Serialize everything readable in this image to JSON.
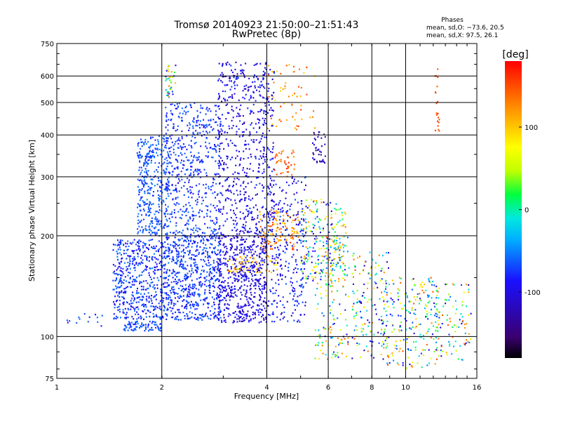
{
  "header": {
    "title": "Tromsø 20140923 21:50:00–21:51:43",
    "subtitle": "RwPretec (8p)"
  },
  "phases": {
    "heading": "Phases",
    "line_o": "mean, sd,O: −73.6, 20.5",
    "line_x": "mean, sd,X:  97.5, 26.1"
  },
  "chart_data": {
    "type": "scatter",
    "title": "Tromsø 20140923 21:50:00–21:51:43",
    "subtitle": "RwPretec (8p)",
    "xlabel": "Frequency [MHz]",
    "ylabel": "Stationary phase Virtual Height [km]",
    "x_scale": "log",
    "y_scale": "log",
    "xlim": [
      1,
      16
    ],
    "ylim": [
      75,
      750
    ],
    "x_ticks": [
      1,
      2,
      4,
      6,
      8,
      10,
      16
    ],
    "x_tick_labels": [
      "1",
      "2",
      "4",
      "6",
      "8",
      "10",
      "16"
    ],
    "x_gridlines": [
      2,
      4,
      6,
      8,
      10
    ],
    "y_ticks": [
      75,
      100,
      200,
      300,
      400,
      500,
      600,
      750
    ],
    "y_tick_labels": [
      "75",
      "100",
      "200",
      "300",
      "400",
      "500",
      "600",
      "750"
    ],
    "y_gridlines": [
      100,
      200,
      300,
      400,
      500,
      600
    ],
    "grid": true,
    "colorbar": {
      "label": "[deg]",
      "range": [
        -180,
        180
      ],
      "ticks": [
        -100,
        0,
        100
      ],
      "tick_labels": [
        "-100",
        "0",
        "100"
      ],
      "colors": [
        "#000000",
        "#3a0070",
        "#1a10ff",
        "#00b0ff",
        "#00e8e0",
        "#00ff40",
        "#c0ff00",
        "#ffff00",
        "#ff9a00",
        "#ff0000"
      ]
    },
    "series": [
      {
        "clusters": [
          {
            "f": [
              1.55,
              2.0
            ],
            "h": [
              104,
              111
            ],
            "phase": [
              -85,
              -55
            ],
            "n": 80
          },
          {
            "f": [
              1.05,
              1.35
            ],
            "h": [
              106,
              118
            ],
            "phase": [
              -90,
              -50
            ],
            "n": 14
          },
          {
            "f": [
              1.45,
              2.05
            ],
            "h": [
              112,
              195
            ],
            "phase": [
              -100,
              -50
            ],
            "n": 520
          },
          {
            "f": [
              1.7,
              2.1
            ],
            "h": [
              200,
              400
            ],
            "phase": [
              -80,
              -50
            ],
            "n": 360
          },
          {
            "f": [
              1.7,
              1.85
            ],
            "h": [
              340,
              350
            ],
            "phase": [
              -75,
              -55
            ],
            "n": 18
          },
          {
            "f": [
              2.05,
              2.95
            ],
            "h": [
              112,
              200
            ],
            "phase": [
              -95,
              -55
            ],
            "n": 620
          },
          {
            "f": [
              2.05,
              2.95
            ],
            "h": [
              200,
              500
            ],
            "phase": [
              -95,
              -55
            ],
            "n": 520
          },
          {
            "f": [
              2.05,
              2.2
            ],
            "h": [
              500,
              650
            ],
            "phase": [
              -100,
              150
            ],
            "n": 40
          },
          {
            "f": [
              2.9,
              4.0
            ],
            "h": [
              110,
              200
            ],
            "phase": [
              -125,
              -75
            ],
            "n": 560
          },
          {
            "f": [
              2.9,
              4.2
            ],
            "h": [
              200,
              660
            ],
            "phase": [
              -125,
              -70
            ],
            "n": 620
          },
          {
            "f": [
              3.1,
              4.3
            ],
            "h": [
              155,
              175
            ],
            "phase": [
              70,
              140
            ],
            "n": 60
          },
          {
            "f": [
              3.8,
              5.0
            ],
            "h": [
              180,
              240
            ],
            "phase": [
              90,
              160
            ],
            "n": 120
          },
          {
            "f": [
              4.2,
              4.8
            ],
            "h": [
              300,
              360
            ],
            "phase": [
              120,
              170
            ],
            "n": 40
          },
          {
            "f": [
              4.0,
              5.2
            ],
            "h": [
              110,
              300
            ],
            "phase": [
              -120,
              -60
            ],
            "n": 260
          },
          {
            "f": [
              4.0,
              5.5
            ],
            "h": [
              400,
              650
            ],
            "phase": [
              90,
              160
            ],
            "n": 60
          },
          {
            "f": [
              5.4,
              5.9
            ],
            "h": [
              330,
              410
            ],
            "phase": [
              -140,
              -100
            ],
            "n": 40
          },
          {
            "f": [
              5.0,
              6.2
            ],
            "h": [
              140,
              260
            ],
            "phase": [
              -130,
              130
            ],
            "n": 170
          },
          {
            "f": [
              5.5,
              6.9
            ],
            "h": [
              85,
              200
            ],
            "phase": [
              -120,
              150
            ],
            "n": 150
          },
          {
            "f": [
              6.2,
              6.8
            ],
            "h": [
              160,
              250
            ],
            "phase": [
              -50,
              150
            ],
            "n": 60
          },
          {
            "f": [
              7.0,
              9.0
            ],
            "h": [
              85,
              180
            ],
            "phase": [
              -140,
              150
            ],
            "n": 160
          },
          {
            "f": [
              8.6,
              12.5
            ],
            "h": [
              80,
              150
            ],
            "phase": [
              -120,
              150
            ],
            "n": 220
          },
          {
            "f": [
              12.2,
              15.4
            ],
            "h": [
              85,
              145
            ],
            "phase": [
              -130,
              150
            ],
            "n": 90
          },
          {
            "f": [
              12.15,
              12.5
            ],
            "h": [
              390,
              630
            ],
            "phase": [
              140,
              160
            ],
            "n": 20
          }
        ]
      }
    ]
  }
}
